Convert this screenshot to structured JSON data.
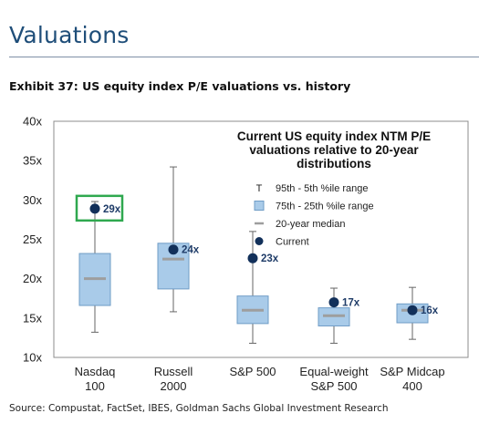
{
  "header": {
    "title": "Valuations",
    "exhibit": "Exhibit 37: US equity index P/E valuations vs. history",
    "source": "Source: Compustat, FactSet, IBES, Goldman Sachs Global Investment Research"
  },
  "colors": {
    "title": "#1f4e79",
    "box_fill": "#a9cbe9",
    "box_stroke": "#6f9cc6",
    "median": "#9e9e9e",
    "current": "#12305a",
    "highlight": "#2fa84f"
  },
  "chart_data": {
    "type": "box",
    "annotation_title": [
      "Current US equity index NTM P/E",
      "valuations relative to 20-year",
      "distributions"
    ],
    "legend": [
      {
        "symbol": "T",
        "label": "95th - 5th %ile range"
      },
      {
        "symbol": "box",
        "label": "75th - 25th %ile range"
      },
      {
        "symbol": "median",
        "label": "20-year median"
      },
      {
        "symbol": "dot",
        "label": "Current"
      }
    ],
    "ylim": [
      10,
      40
    ],
    "yticks": [
      10,
      15,
      20,
      25,
      30,
      35,
      40
    ],
    "ytick_labels": [
      "10x",
      "15x",
      "20x",
      "25x",
      "30x",
      "35x",
      "40x"
    ],
    "categories": [
      [
        "Nasdaq",
        "100"
      ],
      [
        "Russell",
        "2000"
      ],
      [
        "S&P 500"
      ],
      [
        "Equal-weight",
        "S&P 500"
      ],
      [
        "S&P Midcap",
        "400"
      ]
    ],
    "whisker_high": [
      29.8,
      34.2,
      26.0,
      18.8,
      18.9
    ],
    "q3": [
      23.2,
      24.5,
      17.8,
      16.3,
      16.8
    ],
    "median": [
      20.0,
      22.5,
      16.0,
      15.3,
      16.0
    ],
    "q1": [
      16.6,
      18.7,
      14.3,
      14.0,
      14.4
    ],
    "whisker_low": [
      13.2,
      15.8,
      11.8,
      11.8,
      12.3
    ],
    "current": [
      28.9,
      23.7,
      22.6,
      17.0,
      16.0
    ],
    "current_labels": [
      "29x",
      "24x",
      "23x",
      "17x",
      "16x"
    ],
    "highlighted_index": 0
  }
}
